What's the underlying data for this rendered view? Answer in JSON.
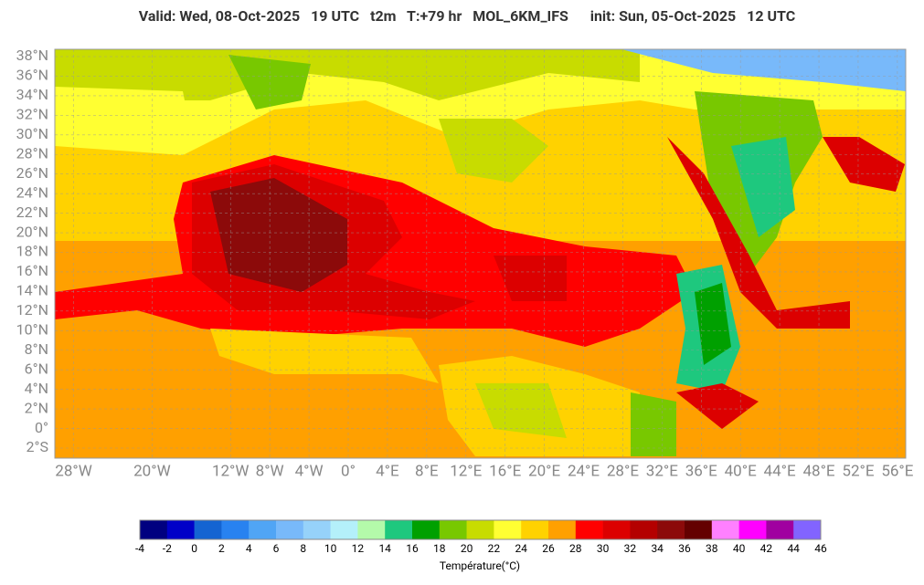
{
  "header": {
    "title": "Valid: Wed, 08-Oct-2025   19 UTC   t2m   T:+79 hr   MOL_6KM_IFS      init: Sun, 05-Oct-2025   12 UTC"
  },
  "map": {
    "lat_ticks": [
      {
        "value": 38,
        "label": "38°N"
      },
      {
        "value": 36,
        "label": "36°N"
      },
      {
        "value": 34,
        "label": "34°N"
      },
      {
        "value": 32,
        "label": "32°N"
      },
      {
        "value": 30,
        "label": "30°N"
      },
      {
        "value": 28,
        "label": "28°N"
      },
      {
        "value": 26,
        "label": "26°N"
      },
      {
        "value": 24,
        "label": "24°N"
      },
      {
        "value": 22,
        "label": "22°N"
      },
      {
        "value": 20,
        "label": "20°N"
      },
      {
        "value": 18,
        "label": "18°N"
      },
      {
        "value": 16,
        "label": "16°N"
      },
      {
        "value": 14,
        "label": "14°N"
      },
      {
        "value": 12,
        "label": "12°N"
      },
      {
        "value": 10,
        "label": "10°N"
      },
      {
        "value": 8,
        "label": "8°N"
      },
      {
        "value": 6,
        "label": "6°N"
      },
      {
        "value": 4,
        "label": "4°N"
      },
      {
        "value": 2,
        "label": "2°N"
      },
      {
        "value": 0,
        "label": "0°"
      },
      {
        "value": -2,
        "label": "2°S"
      }
    ],
    "lon_ticks": [
      {
        "value": -28,
        "label": "28°W"
      },
      {
        "value": -20,
        "label": "20°W"
      },
      {
        "value": -12,
        "label": "12°W"
      },
      {
        "value": -8,
        "label": "8°W"
      },
      {
        "value": -4,
        "label": "4°W"
      },
      {
        "value": 0,
        "label": "0°"
      },
      {
        "value": 4,
        "label": "4°E"
      },
      {
        "value": 8,
        "label": "8°E"
      },
      {
        "value": 12,
        "label": "12°E"
      },
      {
        "value": 16,
        "label": "16°E"
      },
      {
        "value": 20,
        "label": "20°E"
      },
      {
        "value": 24,
        "label": "24°E"
      },
      {
        "value": 28,
        "label": "28°E"
      },
      {
        "value": 32,
        "label": "32°E"
      },
      {
        "value": 36,
        "label": "36°E"
      },
      {
        "value": 40,
        "label": "40°E"
      },
      {
        "value": 44,
        "label": "44°E"
      },
      {
        "value": 48,
        "label": "48°E"
      },
      {
        "value": 52,
        "label": "52°E"
      },
      {
        "value": 56,
        "label": "56°E"
      }
    ]
  },
  "colorbar": {
    "colors": [
      "#000080",
      "#0000c8",
      "#1464d2",
      "#2882f0",
      "#50a5f5",
      "#78b9fa",
      "#96d2fa",
      "#b4f0fa",
      "#b4faaa",
      "#1ec87e",
      "#00a000",
      "#78c800",
      "#c8dc00",
      "#ffff32",
      "#ffd200",
      "#ffa000",
      "#ff0000",
      "#dc0000",
      "#b40000",
      "#8c0a0a",
      "#640000",
      "#ff80ff",
      "#ff00ff",
      "#a000a0",
      "#8264ff"
    ],
    "ticks": [
      -4,
      -2,
      0,
      2,
      4,
      6,
      8,
      10,
      12,
      14,
      16,
      18,
      20,
      22,
      24,
      26,
      28,
      30,
      32,
      34,
      36,
      38,
      40,
      42,
      44,
      46
    ],
    "label": "Température(°C)"
  }
}
